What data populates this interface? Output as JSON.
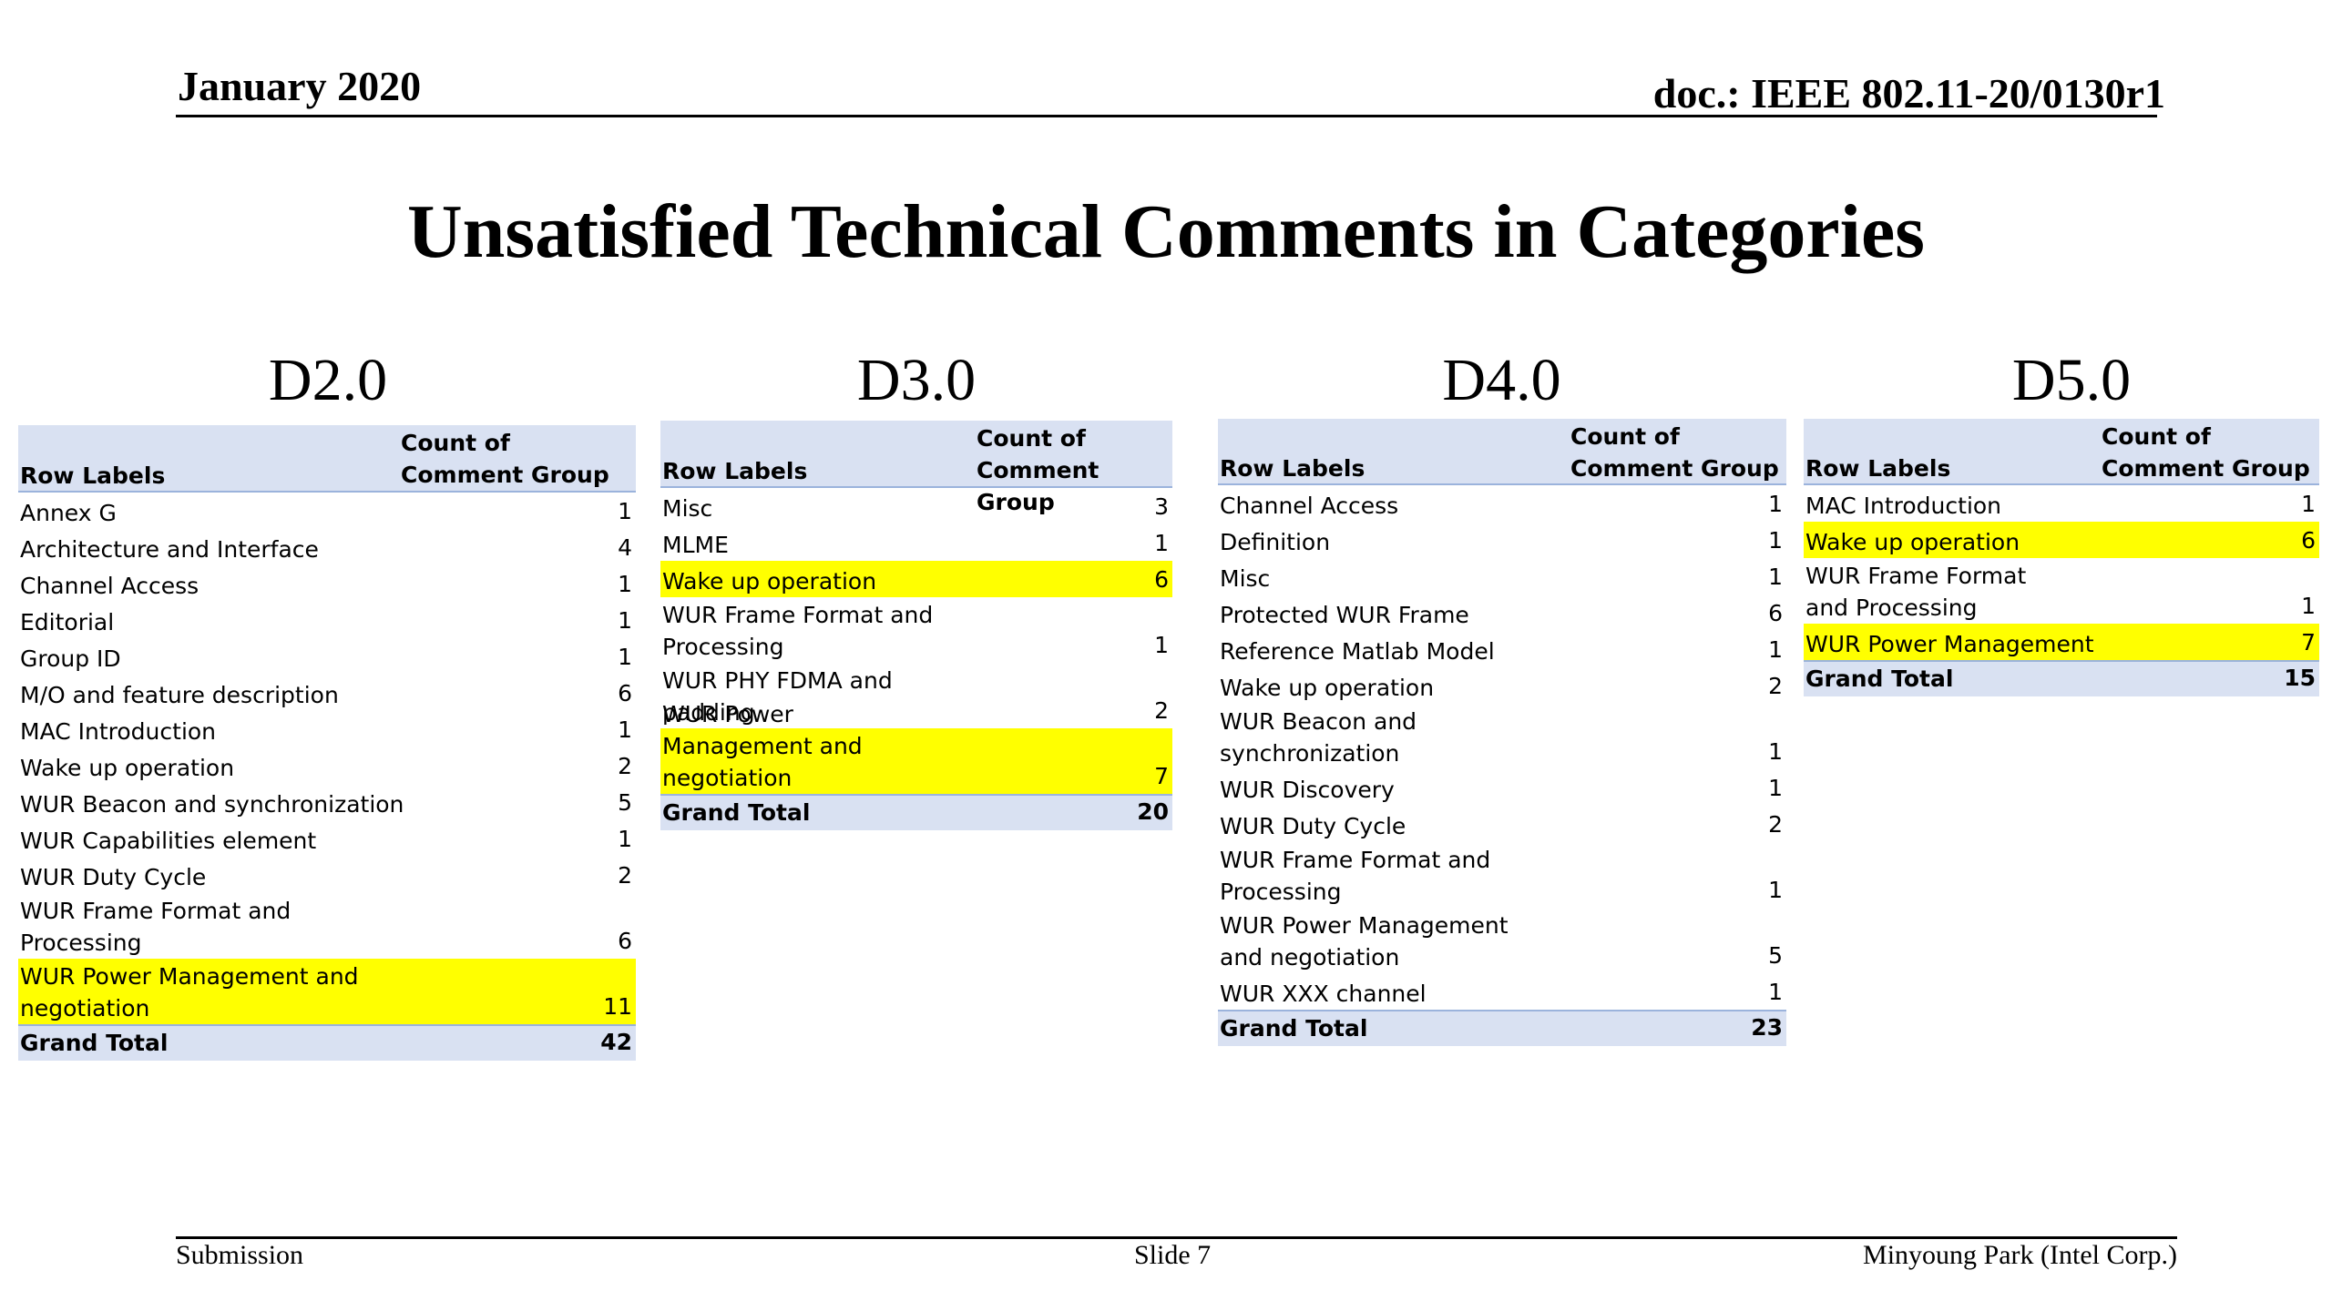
{
  "header": {
    "date": "January 2020",
    "doc": "doc.: IEEE 802.11-20/0130r1"
  },
  "title": "Unsatisfied Technical Comments in Categories",
  "tables": [
    {
      "version": "D2.0",
      "row_labels_header": "Row Labels",
      "count_header": "Count of Comment Group",
      "rows": [
        {
          "label": "Annex G",
          "value": "1",
          "highlight": false
        },
        {
          "label": "Architecture and Interface",
          "value": "4",
          "highlight": false
        },
        {
          "label": "Channel Access",
          "value": "1",
          "highlight": false
        },
        {
          "label": "Editorial",
          "value": "1",
          "highlight": false
        },
        {
          "label": "Group ID",
          "value": "1",
          "highlight": false
        },
        {
          "label": "M/O and feature description",
          "value": "6",
          "highlight": false
        },
        {
          "label": "MAC Introduction",
          "value": "1",
          "highlight": false
        },
        {
          "label": "Wake up operation",
          "value": "2",
          "highlight": false
        },
        {
          "label": "WUR Beacon and synchronization",
          "value": "5",
          "highlight": false
        },
        {
          "label": "WUR Capabilities element",
          "value": "1",
          "highlight": false
        },
        {
          "label": "WUR Duty Cycle",
          "value": "2",
          "highlight": false
        },
        {
          "label": "WUR Frame Format and Processing",
          "value": "6",
          "highlight": false
        },
        {
          "label": "WUR Power Management and negotiation",
          "value": "11",
          "highlight": true
        }
      ],
      "total_label": "Grand Total",
      "total_value": "42"
    },
    {
      "version": "D3.0",
      "row_labels_header": "Row Labels",
      "count_header": "Count of Comment Group",
      "rows": [
        {
          "label": "Misc",
          "value": "3",
          "highlight": false
        },
        {
          "label": "MLME",
          "value": "1",
          "highlight": false
        },
        {
          "label": "Wake up operation",
          "value": "6",
          "highlight": true
        },
        {
          "label": "WUR Frame Format and Processing",
          "value": "1",
          "highlight": false
        },
        {
          "label": "WUR PHY FDMA and padding",
          "value": "2",
          "highlight": false
        },
        {
          "label": "WUR Power Management and negotiation",
          "value": "7",
          "highlight": true
        }
      ],
      "total_label": "Grand Total",
      "total_value": "20"
    },
    {
      "version": "D4.0",
      "row_labels_header": "Row Labels",
      "count_header": "Count of Comment Group",
      "rows": [
        {
          "label": "Channel Access",
          "value": "1",
          "highlight": false
        },
        {
          "label": "Definition",
          "value": "1",
          "highlight": false
        },
        {
          "label": "Misc",
          "value": "1",
          "highlight": false
        },
        {
          "label": "Protected WUR Frame",
          "value": "6",
          "highlight": false
        },
        {
          "label": "Reference Matlab Model",
          "value": "1",
          "highlight": false
        },
        {
          "label": "Wake up operation",
          "value": "2",
          "highlight": false
        },
        {
          "label": "WUR Beacon and synchronization",
          "value": "1",
          "highlight": false
        },
        {
          "label": "WUR Discovery",
          "value": "1",
          "highlight": false
        },
        {
          "label": "WUR Duty Cycle",
          "value": "2",
          "highlight": false
        },
        {
          "label": "WUR Frame Format and Processing",
          "value": "1",
          "highlight": false
        },
        {
          "label": "WUR Power Management and negotiation",
          "value": "5",
          "highlight": false
        },
        {
          "label": "WUR XXX channel",
          "value": "1",
          "highlight": false
        }
      ],
      "total_label": "Grand Total",
      "total_value": "23"
    },
    {
      "version": "D5.0",
      "row_labels_header": "Row Labels",
      "count_header": "Count of Comment Group",
      "rows": [
        {
          "label": "MAC Introduction",
          "value": "1",
          "highlight": false
        },
        {
          "label": "Wake up operation",
          "value": "6",
          "highlight": true
        },
        {
          "label": "WUR Frame Format and Processing",
          "value": "1",
          "highlight": false
        },
        {
          "label": "WUR Power Management",
          "value": "7",
          "highlight": true
        }
      ],
      "total_label": "Grand Total",
      "total_value": "15"
    }
  ],
  "footer": {
    "left": "Submission",
    "center": "Slide 7",
    "right": "Minyoung Park (Intel Corp.)"
  },
  "colors": {
    "header_fill": "#d9e1f2",
    "highlight": "#ffff00"
  }
}
